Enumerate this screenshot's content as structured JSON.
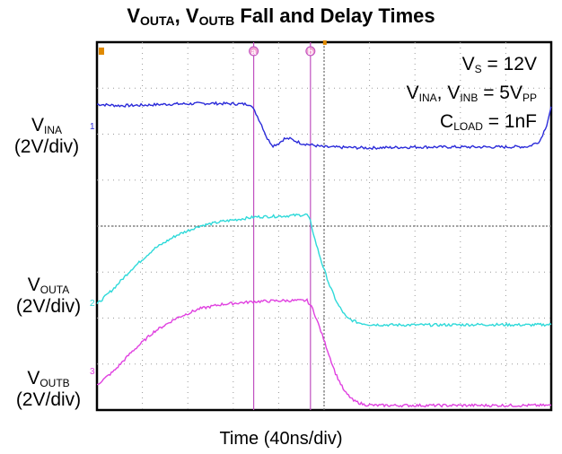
{
  "title": {
    "v1": "V",
    "v1_sub": "OUTA",
    "sep": ", ",
    "v2": "V",
    "v2_sub": "OUTB",
    "rest": " Fall and Delay Times"
  },
  "annotations": {
    "vs": {
      "sym": "V",
      "sub": "S",
      "rest": " = 12V"
    },
    "vin": {
      "sym1": "V",
      "sub1": "INA",
      "sep": ", ",
      "sym2": "V",
      "sub2": "INB",
      "mid": " = 5V",
      "sub3": "PP"
    },
    "cload": {
      "sym": "C",
      "sub": "LOAD",
      "rest": " = 1nF"
    }
  },
  "ylabels": {
    "ina": {
      "sym": "V",
      "sub": "INA",
      "scale": "(2V/div)"
    },
    "outa": {
      "sym": "V",
      "sub": "OUTA",
      "scale": "(2V/div)"
    },
    "outb": {
      "sym": "V",
      "sub": "OUTB",
      "scale": "(2V/div)"
    }
  },
  "xlabel": "Time (40ns/div)",
  "channel_markers": [
    "1",
    "2",
    "3"
  ],
  "cursor_markers": [
    "a",
    "b"
  ],
  "chart_data": {
    "type": "line",
    "xlabel": "Time (40ns/div)",
    "x_unit": "ns",
    "x_per_div": 40,
    "y_per_div_volts": 2,
    "divisions": {
      "x": 10,
      "y": 8
    },
    "xlim": [
      0,
      400
    ],
    "cursors_ns": {
      "a": 138,
      "b": 188
    },
    "grid": "dotted",
    "series": [
      {
        "name": "VINA",
        "color": "#2b2bd9",
        "x": [
          0,
          20,
          40,
          60,
          80,
          100,
          120,
          135,
          140,
          145,
          150,
          155,
          160,
          165,
          170,
          180,
          200,
          240,
          280,
          320,
          360,
          380,
          390,
          396,
          400
        ],
        "y_div": [
          6.65,
          6.62,
          6.63,
          6.65,
          6.66,
          6.67,
          6.66,
          6.65,
          6.45,
          6.2,
          5.9,
          5.75,
          5.8,
          5.9,
          5.9,
          5.8,
          5.72,
          5.7,
          5.72,
          5.72,
          5.72,
          5.73,
          5.85,
          6.2,
          6.6
        ]
      },
      {
        "name": "VOUTA",
        "color": "#2ed9d9",
        "x": [
          0,
          15,
          30,
          50,
          70,
          90,
          110,
          140,
          165,
          185,
          188,
          192,
          198,
          205,
          212,
          220,
          230,
          240,
          260,
          300,
          340,
          380,
          400
        ],
        "y_div": [
          2.3,
          2.65,
          3.05,
          3.5,
          3.8,
          4.0,
          4.1,
          4.2,
          4.22,
          4.25,
          4.1,
          3.7,
          3.2,
          2.7,
          2.3,
          2.0,
          1.9,
          1.86,
          1.85,
          1.85,
          1.86,
          1.85,
          1.86
        ]
      },
      {
        "name": "VOUTB",
        "color": "#e040e0",
        "x": [
          0,
          15,
          30,
          50,
          70,
          90,
          110,
          140,
          165,
          185,
          190,
          196,
          203,
          210,
          218,
          226,
          235,
          245,
          260,
          300,
          340,
          380,
          400
        ],
        "y_div": [
          0.55,
          0.85,
          1.25,
          1.7,
          2.0,
          2.2,
          2.3,
          2.36,
          2.38,
          2.38,
          2.2,
          1.8,
          1.3,
          0.8,
          0.4,
          0.2,
          0.12,
          0.1,
          0.1,
          0.1,
          0.1,
          0.1,
          0.1
        ]
      }
    ]
  },
  "colors": {
    "frame": "#000000",
    "grid": "#9a9a9a",
    "cursor": "#c050c0",
    "trigger_marker": "#e08a00",
    "ina": "#2b2bd9",
    "outa": "#2ed9d9",
    "outb": "#e040e0"
  }
}
